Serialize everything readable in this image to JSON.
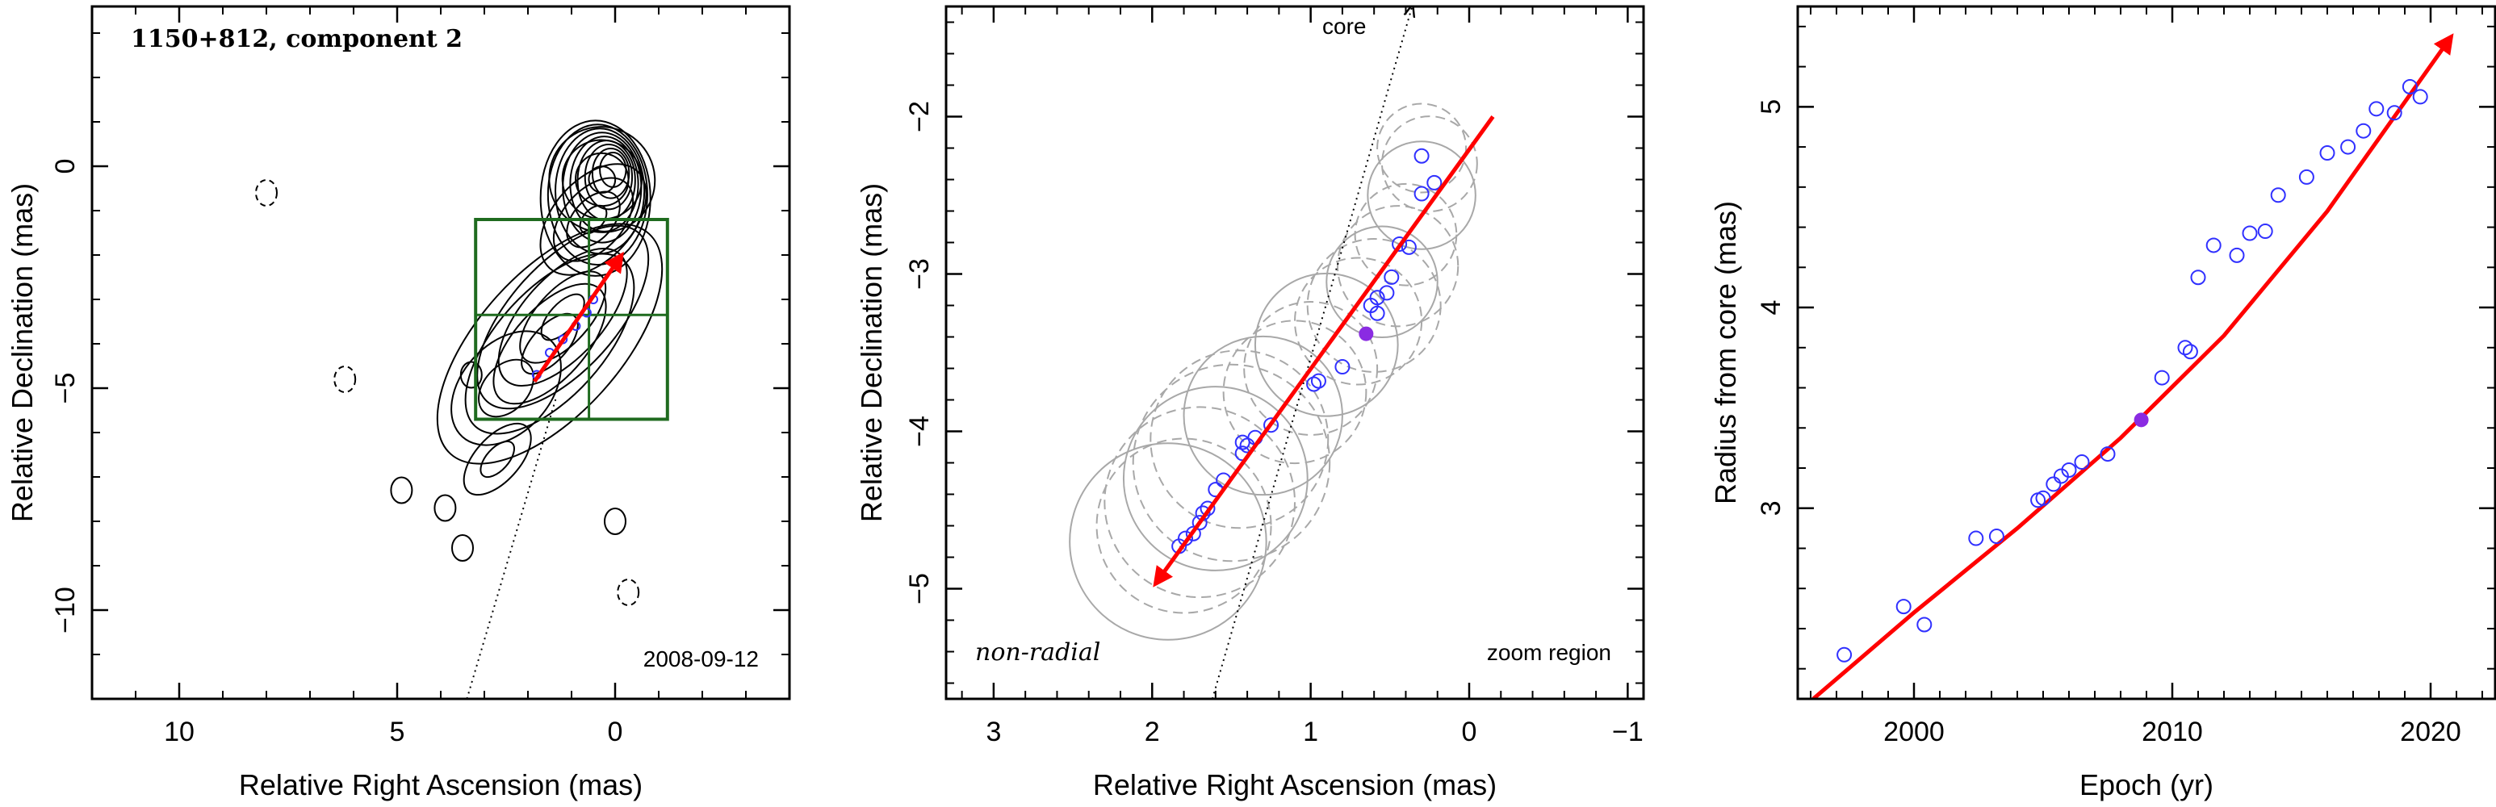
{
  "chart_data": [
    {
      "type": "contour",
      "title": "1150+812, component 2",
      "xlabel": "Relative Right Ascension (mas)",
      "ylabel": "Relative Declination (mas)",
      "xlim": [
        12,
        -4
      ],
      "ylim": [
        -12,
        3.6
      ],
      "xticks": [
        10,
        5,
        0
      ],
      "yticks": [
        0,
        -5,
        -10
      ],
      "annotation": "2008-09-12",
      "core": {
        "x": 0,
        "y": 0
      },
      "components": [
        {
          "x": 0.3,
          "y": -0.3,
          "a": 1.2,
          "b": 1.2
        },
        {
          "x": 0.5,
          "y": -1.2,
          "a": 1.5,
          "b": 0.9
        },
        {
          "x": 1.2,
          "y": -3.4,
          "a": 2.6,
          "b": 1.2
        },
        {
          "x": 1.5,
          "y": -4.0,
          "a": 3.4,
          "b": 1.6
        },
        {
          "x": 2.5,
          "y": -5.0,
          "a": 1.5,
          "b": 1.0
        },
        {
          "x": 2.7,
          "y": -6.6,
          "a": 1.0,
          "b": 0.5
        }
      ],
      "isolated_contours": [
        {
          "x": 4.9,
          "y": -7.3
        },
        {
          "x": 3.9,
          "y": -7.7
        },
        {
          "x": 3.5,
          "y": -8.6
        },
        {
          "x": 0,
          "y": -8.0
        },
        {
          "x": -0.3,
          "y": -9.6,
          "dashed": true
        },
        {
          "x": 8.0,
          "y": -0.6,
          "dashed": true
        },
        {
          "x": 6.2,
          "y": -4.8,
          "dashed": true
        },
        {
          "x": 3.3,
          "y": -4.7
        }
      ],
      "velocity_vector": {
        "from": {
          "x": 1.85,
          "y": -4.85
        },
        "to": {
          "x": -0.15,
          "y": -2.0
        }
      },
      "trajectory_points": [
        {
          "x": 1.8,
          "y": -4.7
        },
        {
          "x": 1.5,
          "y": -4.2
        },
        {
          "x": 1.2,
          "y": -3.9
        },
        {
          "x": 0.9,
          "y": -3.6
        },
        {
          "x": 0.65,
          "y": -3.3
        },
        {
          "x": 0.5,
          "y": -3.0
        }
      ],
      "radial_line": {
        "from": {
          "x": 3.4,
          "y": -12
        },
        "to": {
          "x": 1.35,
          "y": -5.2
        }
      },
      "zoom_region": {
        "xmin": -1.2,
        "xmax": 3.2,
        "ymin": -5.7,
        "ymax": -1.2,
        "ymid": -3.35,
        "xmid": 0.6
      }
    },
    {
      "type": "scatter",
      "xlabel": "Relative Right Ascension (mas)",
      "ylabel": "Relative Declination (mas)",
      "xlim": [
        3.3,
        -1.1
      ],
      "ylim": [
        -5.7,
        -1.3
      ],
      "xticks": [
        3,
        2,
        1,
        0,
        -1
      ],
      "yticks": [
        -2,
        -3,
        -4,
        -5
      ],
      "annotation_core": "core",
      "annotation_left": "non-radial",
      "annotation_right": "zoom region",
      "points": [
        {
          "x": 1.83,
          "y": -4.73
        },
        {
          "x": 1.79,
          "y": -4.68
        },
        {
          "x": 1.74,
          "y": -4.65
        },
        {
          "x": 1.7,
          "y": -4.58
        },
        {
          "x": 1.68,
          "y": -4.52
        },
        {
          "x": 1.65,
          "y": -4.49
        },
        {
          "x": 1.6,
          "y": -4.37
        },
        {
          "x": 1.55,
          "y": -4.31
        },
        {
          "x": 1.43,
          "y": -4.14
        },
        {
          "x": 1.4,
          "y": -4.09
        },
        {
          "x": 1.43,
          "y": -4.07
        },
        {
          "x": 1.35,
          "y": -4.04
        },
        {
          "x": 1.25,
          "y": -3.96
        },
        {
          "x": 0.98,
          "y": -3.7
        },
        {
          "x": 0.95,
          "y": -3.68
        },
        {
          "x": 0.8,
          "y": -3.59
        },
        {
          "x": 0.58,
          "y": -3.25
        },
        {
          "x": 0.62,
          "y": -3.2
        },
        {
          "x": 0.58,
          "y": -3.15
        },
        {
          "x": 0.52,
          "y": -3.12
        },
        {
          "x": 0.49,
          "y": -3.02
        },
        {
          "x": 0.44,
          "y": -2.81
        },
        {
          "x": 0.38,
          "y": -2.83
        },
        {
          "x": 0.3,
          "y": -2.49
        },
        {
          "x": 0.22,
          "y": -2.42
        },
        {
          "x": 0.3,
          "y": -2.25
        }
      ],
      "highlight_point": {
        "x": 0.65,
        "y": -3.38
      },
      "velocity_vector": {
        "from": {
          "x": 1.98,
          "y": -4.97
        },
        "to": {
          "x": -0.15,
          "y": -2.0
        }
      },
      "radial_line": {
        "from": {
          "x": 1.62,
          "y": -5.7
        },
        "to": {
          "x": 0.36,
          "y": -1.3
        }
      },
      "circles": [
        {
          "x": 1.9,
          "y": -4.7,
          "r": 0.62
        },
        {
          "x": 1.8,
          "y": -4.6,
          "r": 0.55
        },
        {
          "x": 1.7,
          "y": -4.45,
          "r": 0.6
        },
        {
          "x": 1.6,
          "y": -4.3,
          "r": 0.58
        },
        {
          "x": 1.5,
          "y": -4.2,
          "r": 0.62
        },
        {
          "x": 1.45,
          "y": -4.05,
          "r": 0.56
        },
        {
          "x": 1.3,
          "y": -3.9,
          "r": 0.5
        },
        {
          "x": 1.1,
          "y": -3.75,
          "r": 0.45
        },
        {
          "x": 1.0,
          "y": -3.6,
          "r": 0.42
        },
        {
          "x": 0.9,
          "y": -3.45,
          "r": 0.45
        },
        {
          "x": 0.7,
          "y": -3.3,
          "r": 0.4
        },
        {
          "x": 0.6,
          "y": -3.2,
          "r": 0.42
        },
        {
          "x": 0.55,
          "y": -3.05,
          "r": 0.35
        },
        {
          "x": 0.45,
          "y": -2.95,
          "r": 0.38
        },
        {
          "x": 0.4,
          "y": -2.75,
          "r": 0.32
        },
        {
          "x": 0.3,
          "y": -2.5,
          "r": 0.34
        },
        {
          "x": 0.25,
          "y": -2.3,
          "r": 0.3
        },
        {
          "x": 0.3,
          "y": -2.2,
          "r": 0.28
        }
      ]
    },
    {
      "type": "scatter",
      "xlabel": "Epoch (yr)",
      "ylabel": "Radius from core (mas)",
      "xlim": [
        1995.5,
        2022.5
      ],
      "ylim": [
        2.05,
        5.5
      ],
      "xticks": [
        2000,
        2010,
        2020
      ],
      "yticks": [
        3,
        4,
        5
      ],
      "points": [
        {
          "x": 1997.3,
          "y": 2.27
        },
        {
          "x": 1999.6,
          "y": 2.51
        },
        {
          "x": 2000.4,
          "y": 2.42
        },
        {
          "x": 2002.4,
          "y": 2.85
        },
        {
          "x": 2003.2,
          "y": 2.86
        },
        {
          "x": 2004.8,
          "y": 3.04
        },
        {
          "x": 2005.0,
          "y": 3.05
        },
        {
          "x": 2005.4,
          "y": 3.12
        },
        {
          "x": 2005.7,
          "y": 3.16
        },
        {
          "x": 2006.0,
          "y": 3.19
        },
        {
          "x": 2006.5,
          "y": 3.23
        },
        {
          "x": 2007.5,
          "y": 3.27
        },
        {
          "x": 2009.6,
          "y": 3.65
        },
        {
          "x": 2010.5,
          "y": 3.8
        },
        {
          "x": 2010.7,
          "y": 3.78
        },
        {
          "x": 2011.0,
          "y": 4.15
        },
        {
          "x": 2011.6,
          "y": 4.31
        },
        {
          "x": 2012.5,
          "y": 4.26
        },
        {
          "x": 2013.0,
          "y": 4.37
        },
        {
          "x": 2013.6,
          "y": 4.38
        },
        {
          "x": 2014.1,
          "y": 4.56
        },
        {
          "x": 2015.2,
          "y": 4.65
        },
        {
          "x": 2016.0,
          "y": 4.77
        },
        {
          "x": 2016.8,
          "y": 4.8
        },
        {
          "x": 2017.4,
          "y": 4.88
        },
        {
          "x": 2017.9,
          "y": 4.99
        },
        {
          "x": 2018.6,
          "y": 4.97
        },
        {
          "x": 2019.2,
          "y": 5.1
        },
        {
          "x": 2019.6,
          "y": 5.05
        }
      ],
      "highlight_point": {
        "x": 2008.8,
        "y": 3.44
      },
      "fit_curve": [
        {
          "x": 1996.1,
          "y": 2.05
        },
        {
          "x": 2000,
          "y": 2.48
        },
        {
          "x": 2004,
          "y": 2.9
        },
        {
          "x": 2008,
          "y": 3.35
        },
        {
          "x": 2012,
          "y": 3.86
        },
        {
          "x": 2016,
          "y": 4.48
        },
        {
          "x": 2020.8,
          "y": 5.35
        }
      ]
    }
  ],
  "colors": {
    "contour": "#000000",
    "zoom_box": "#1f6b1f",
    "vector": "#ff0000",
    "points": "#3030ff",
    "highlight": "#8a2be2",
    "circles": "#a8a8a8"
  }
}
